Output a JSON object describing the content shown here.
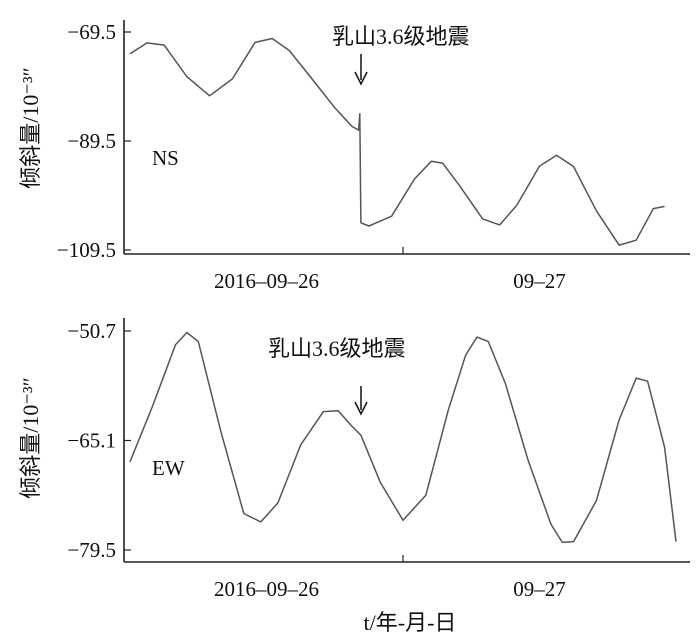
{
  "chart_data": [
    {
      "type": "line",
      "component": "NS",
      "ylabel": "倾斜量/10⁻³″",
      "ylim": [
        -109.5,
        -69.5
      ],
      "yticks": [
        -69.5,
        -89.5,
        -109.5
      ],
      "xlim": [
        0,
        48
      ],
      "xticks": [
        24
      ],
      "date_labels": [
        {
          "text": "2016-09-26",
          "x": 12
        },
        {
          "text": "09-27",
          "x": 36
        }
      ],
      "annotation": {
        "text": "乳山3.6级地震",
        "x": 20.2
      },
      "series": [
        {
          "points": [
            [
              0,
              -73.5
            ],
            [
              1.5,
              -71.5
            ],
            [
              3,
              -71.9
            ],
            [
              5,
              -77.7
            ],
            [
              7,
              -81.2
            ],
            [
              9,
              -78.1
            ],
            [
              11,
              -71.4
            ],
            [
              12.5,
              -70.7
            ],
            [
              14,
              -72.9
            ],
            [
              16,
              -78.1
            ],
            [
              18,
              -83.4
            ],
            [
              19.5,
              -86.8
            ],
            [
              20.1,
              -87.5
            ],
            [
              20.2,
              -84.5
            ],
            [
              20.3,
              -104.5
            ],
            [
              21,
              -105.1
            ],
            [
              23,
              -103.3
            ],
            [
              25,
              -96.5
            ],
            [
              26.5,
              -93.2
            ],
            [
              27.5,
              -93.6
            ],
            [
              29,
              -97.8
            ],
            [
              31,
              -103.8
            ],
            [
              32.5,
              -104.9
            ],
            [
              34,
              -101.3
            ],
            [
              36,
              -94.1
            ],
            [
              37.5,
              -92.1
            ],
            [
              39,
              -94.2
            ],
            [
              41,
              -102.3
            ],
            [
              43,
              -108.6
            ],
            [
              44.5,
              -107.7
            ],
            [
              46,
              -101.9
            ],
            [
              47,
              -101.5
            ]
          ]
        }
      ]
    },
    {
      "type": "line",
      "component": "EW",
      "ylabel": "倾斜量/10⁻³″",
      "ylim": [
        -79.5,
        -50.7
      ],
      "yticks": [
        -50.7,
        -65.1,
        -79.5
      ],
      "xlim": [
        0,
        48
      ],
      "xticks": [
        24
      ],
      "date_labels": [
        {
          "text": "2016-09-26",
          "x": 12
        },
        {
          "text": "09-27",
          "x": 36
        }
      ],
      "annotation": {
        "text": "乳山3.6级地震",
        "x": 20.2
      },
      "xlabel": "t/年-月-日",
      "series": [
        {
          "points": [
            [
              0,
              -67.9
            ],
            [
              2,
              -60.5
            ],
            [
              4,
              -52.5
            ],
            [
              5,
              -50.9
            ],
            [
              6,
              -52.1
            ],
            [
              8,
              -64.0
            ],
            [
              10,
              -74.7
            ],
            [
              11.5,
              -75.8
            ],
            [
              13,
              -73.3
            ],
            [
              15,
              -65.7
            ],
            [
              17,
              -61.3
            ],
            [
              18.3,
              -61.2
            ],
            [
              19.5,
              -63.2
            ],
            [
              20.3,
              -64.4
            ],
            [
              22,
              -70.6
            ],
            [
              24,
              -75.6
            ],
            [
              26,
              -72.3
            ],
            [
              28,
              -61.0
            ],
            [
              29.5,
              -53.9
            ],
            [
              30.5,
              -51.5
            ],
            [
              31.5,
              -52.1
            ],
            [
              33,
              -57.6
            ],
            [
              35,
              -67.7
            ],
            [
              37,
              -76.1
            ],
            [
              38,
              -78.5
            ],
            [
              39,
              -78.4
            ],
            [
              41,
              -73.0
            ],
            [
              43,
              -62.4
            ],
            [
              44.5,
              -56.9
            ],
            [
              45.5,
              -57.3
            ],
            [
              47,
              -66.0
            ],
            [
              48,
              -78.4
            ]
          ]
        }
      ]
    }
  ]
}
